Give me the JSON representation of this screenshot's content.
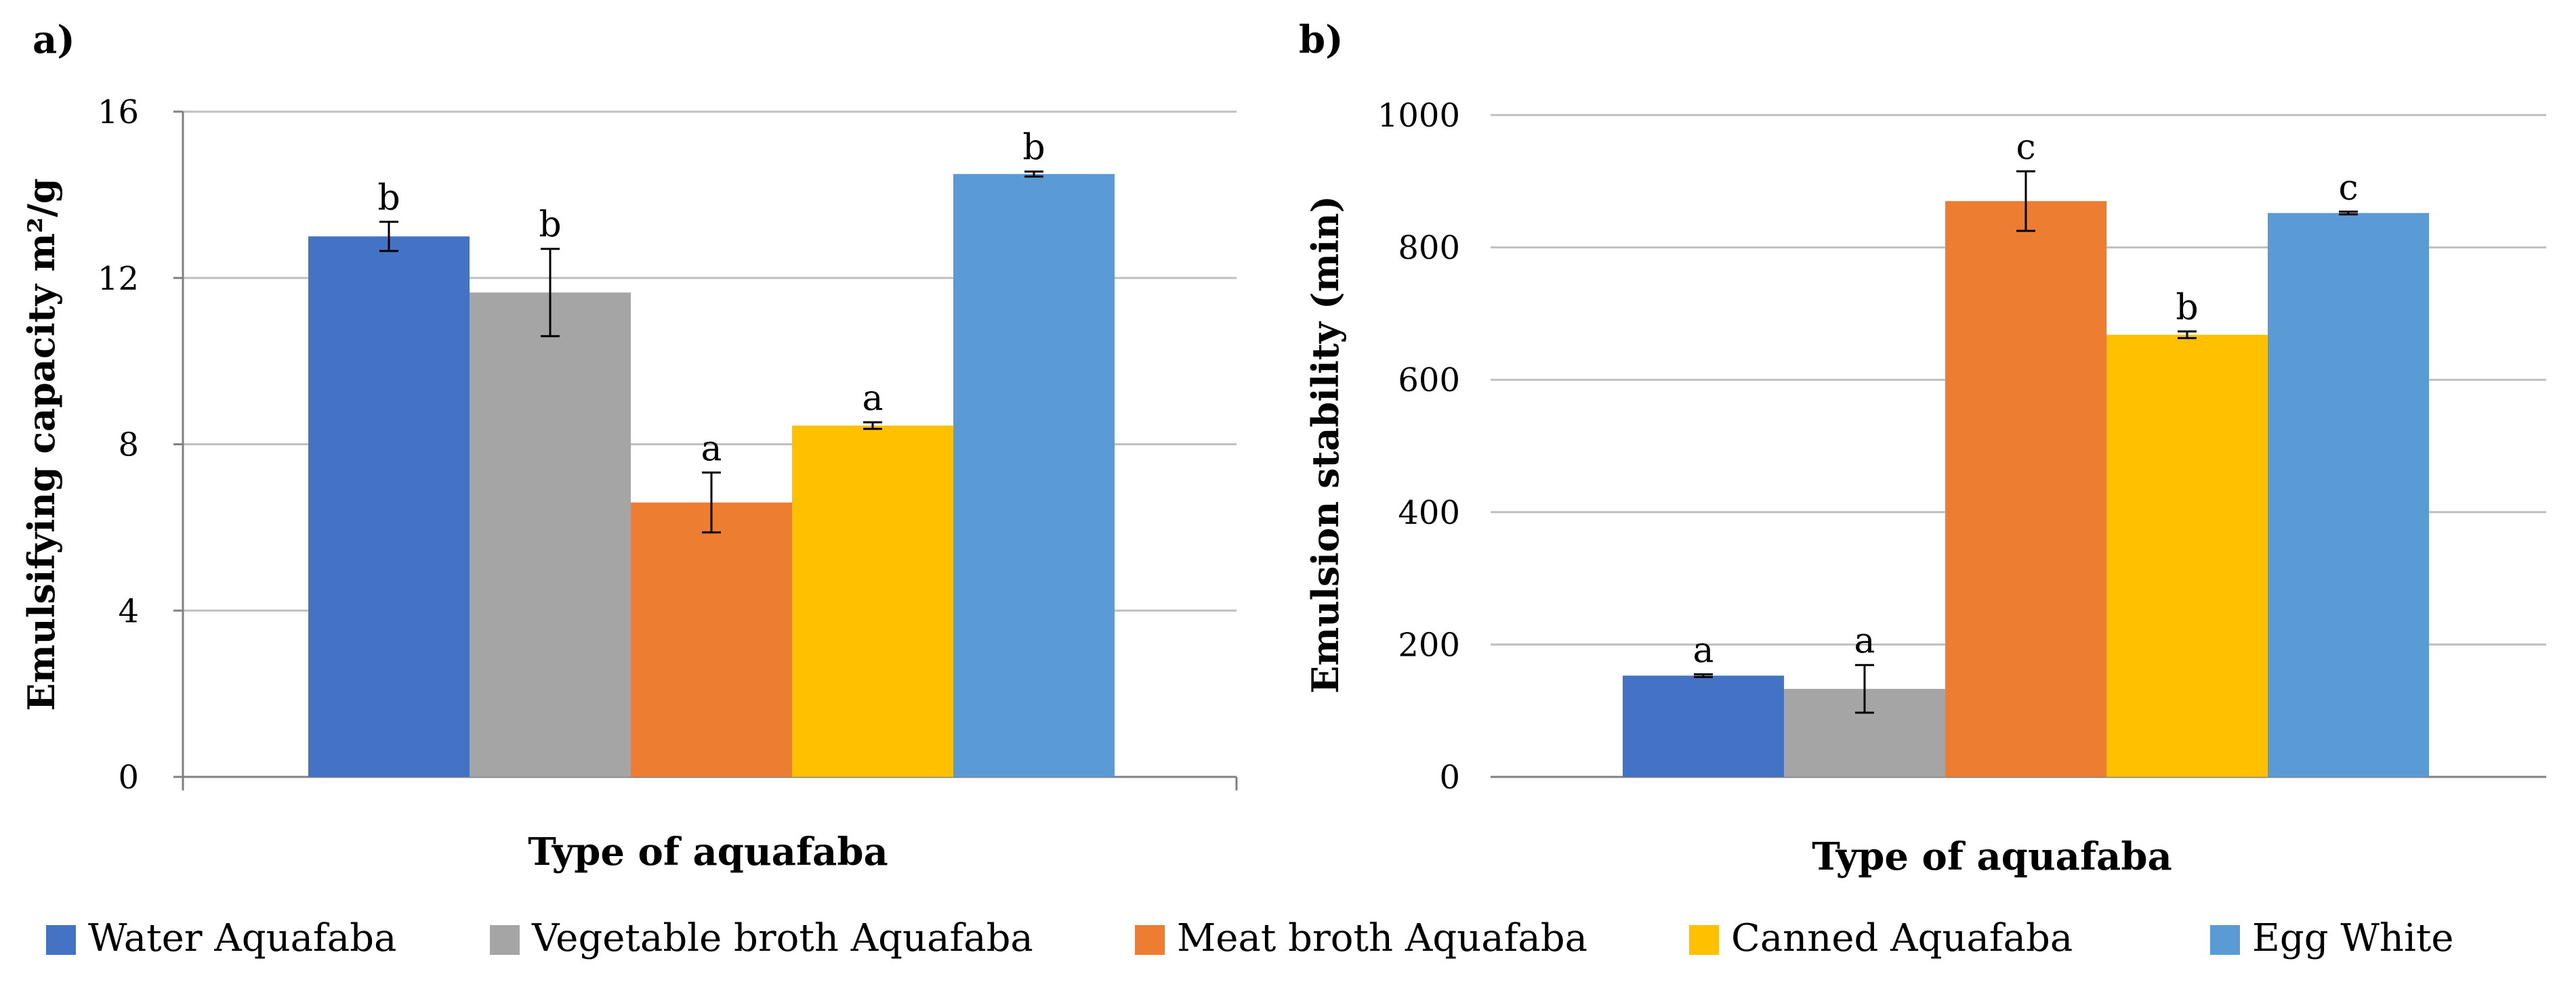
{
  "colors": {
    "Water Aquafaba": "#4472C4",
    "Vegetable broth Aquafaba": "#A5A5A5",
    "Meat broth Aquafaba": "#ED7D31",
    "Canned Aquafaba": "#FFC000",
    "Egg White": "#5B9BD5",
    "grid": "#BFBFBF",
    "axis": "#808080",
    "text": "#000000"
  },
  "legend": {
    "entries": [
      "Water Aquafaba",
      "Vegetable broth Aquafaba",
      "Meat broth Aquafaba",
      "Canned Aquafaba",
      "Egg White"
    ]
  },
  "chart_data": [
    {
      "type": "bar",
      "panel_label": "a)",
      "xlabel": "Type of aquafaba",
      "ylabel": "Emulsifying capacity m²/g",
      "ylim": [
        0,
        16
      ],
      "yticks": [
        0,
        4,
        8,
        12,
        16
      ],
      "grid": true,
      "categories": [
        "Water Aquafaba",
        "Vegetable broth Aquafaba",
        "Meat broth Aquafaba",
        "Canned Aquafaba",
        "Egg White"
      ],
      "values": [
        13.0,
        11.65,
        6.6,
        8.45,
        14.5
      ],
      "errors": [
        0.35,
        1.05,
        0.72,
        0.08,
        0.06
      ],
      "letters": [
        "b",
        "b",
        "a",
        "a",
        "b"
      ]
    },
    {
      "type": "bar",
      "panel_label": "b)",
      "xlabel": "Type of aquafaba",
      "ylabel": "Emulsion stability (min)",
      "ylim": [
        0,
        1000
      ],
      "yticks": [
        0,
        200,
        400,
        600,
        800,
        1000
      ],
      "grid": true,
      "categories": [
        "Water Aquafaba",
        "Vegetable broth Aquafaba",
        "Meat broth Aquafaba",
        "Canned Aquafaba",
        "Egg White"
      ],
      "values": [
        153,
        133,
        870,
        668,
        852
      ],
      "errors": [
        2,
        36,
        45,
        5,
        2
      ],
      "letters": [
        "a",
        "a",
        "c",
        "b",
        "c"
      ]
    }
  ]
}
